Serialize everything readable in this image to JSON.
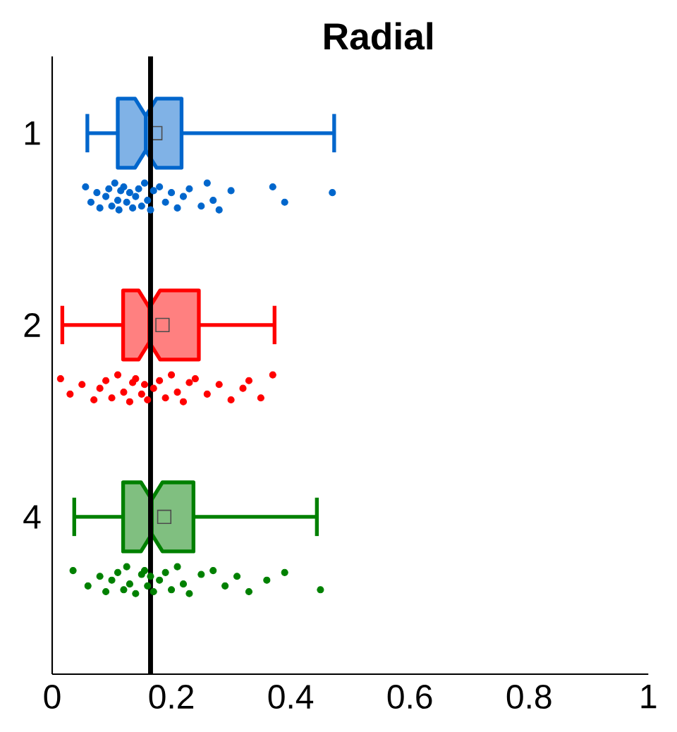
{
  "chart_data": {
    "type": "box",
    "orientation": "horizontal",
    "title": "Radial",
    "categories": [
      "1",
      "2",
      "4"
    ],
    "colors": [
      "#0066cc",
      "#ff0000",
      "#008000"
    ],
    "boxes": [
      {
        "low": 0.059,
        "q1": 0.11,
        "median": 0.157,
        "q3": 0.217,
        "high": 0.473,
        "mean": 0.173
      },
      {
        "low": 0.017,
        "q1": 0.119,
        "median": 0.163,
        "q3": 0.246,
        "high": 0.373,
        "mean": 0.185
      },
      {
        "low": 0.037,
        "q1": 0.119,
        "median": 0.167,
        "q3": 0.237,
        "high": 0.444,
        "mean": 0.188
      }
    ],
    "series": [
      {
        "type": "scatter",
        "color": "#0066cc",
        "x": [
          "1",
          "1",
          "1",
          "1",
          "1",
          "1",
          "1",
          "1",
          "1",
          "1",
          "1",
          "1",
          "1",
          "1",
          "1",
          "1",
          "1",
          "1",
          "1",
          "1",
          "1",
          "1",
          "1",
          "1",
          "1",
          "1",
          "1",
          "1",
          "1",
          "1",
          "1",
          "1",
          "1",
          "1",
          "1",
          "1"
        ],
        "values": [
          0.056,
          0.065,
          0.075,
          0.08,
          0.09,
          0.095,
          0.1,
          0.105,
          0.11,
          0.112,
          0.115,
          0.12,
          0.125,
          0.13,
          0.135,
          0.14,
          0.145,
          0.15,
          0.155,
          0.16,
          0.165,
          0.17,
          0.18,
          0.19,
          0.2,
          0.21,
          0.22,
          0.23,
          0.25,
          0.26,
          0.27,
          0.28,
          0.3,
          0.37,
          0.39,
          0.47
        ]
      },
      {
        "type": "scatter",
        "color": "#ff0000",
        "x": [
          "2",
          "2",
          "2",
          "2",
          "2",
          "2",
          "2",
          "2",
          "2",
          "2",
          "2",
          "2",
          "2",
          "2",
          "2",
          "2",
          "2",
          "2",
          "2",
          "2",
          "2",
          "2",
          "2",
          "2",
          "2",
          "2",
          "2",
          "2",
          "2",
          "2"
        ],
        "values": [
          0.014,
          0.03,
          0.05,
          0.07,
          0.08,
          0.09,
          0.1,
          0.11,
          0.12,
          0.13,
          0.135,
          0.14,
          0.15,
          0.155,
          0.16,
          0.17,
          0.18,
          0.19,
          0.2,
          0.21,
          0.22,
          0.23,
          0.24,
          0.26,
          0.28,
          0.3,
          0.32,
          0.33,
          0.35,
          0.37
        ]
      },
      {
        "type": "scatter",
        "color": "#008000",
        "x": [
          "4",
          "4",
          "4",
          "4",
          "4",
          "4",
          "4",
          "4",
          "4",
          "4",
          "4",
          "4",
          "4",
          "4",
          "4",
          "4",
          "4",
          "4",
          "4",
          "4",
          "4",
          "4",
          "4",
          "4",
          "4",
          "4",
          "4",
          "4",
          "4"
        ],
        "values": [
          0.035,
          0.06,
          0.08,
          0.09,
          0.1,
          0.11,
          0.12,
          0.125,
          0.13,
          0.14,
          0.15,
          0.155,
          0.16,
          0.165,
          0.17,
          0.18,
          0.19,
          0.2,
          0.21,
          0.22,
          0.23,
          0.25,
          0.27,
          0.29,
          0.31,
          0.33,
          0.36,
          0.39,
          0.45
        ]
      }
    ],
    "ref_lines": [
      {
        "axis": "x",
        "value": 0.165,
        "color": "#000000"
      }
    ],
    "xlim": [
      0,
      1
    ],
    "xticks": [
      0,
      0.2,
      0.4,
      0.6,
      0.8,
      1
    ],
    "marker": "circle"
  }
}
